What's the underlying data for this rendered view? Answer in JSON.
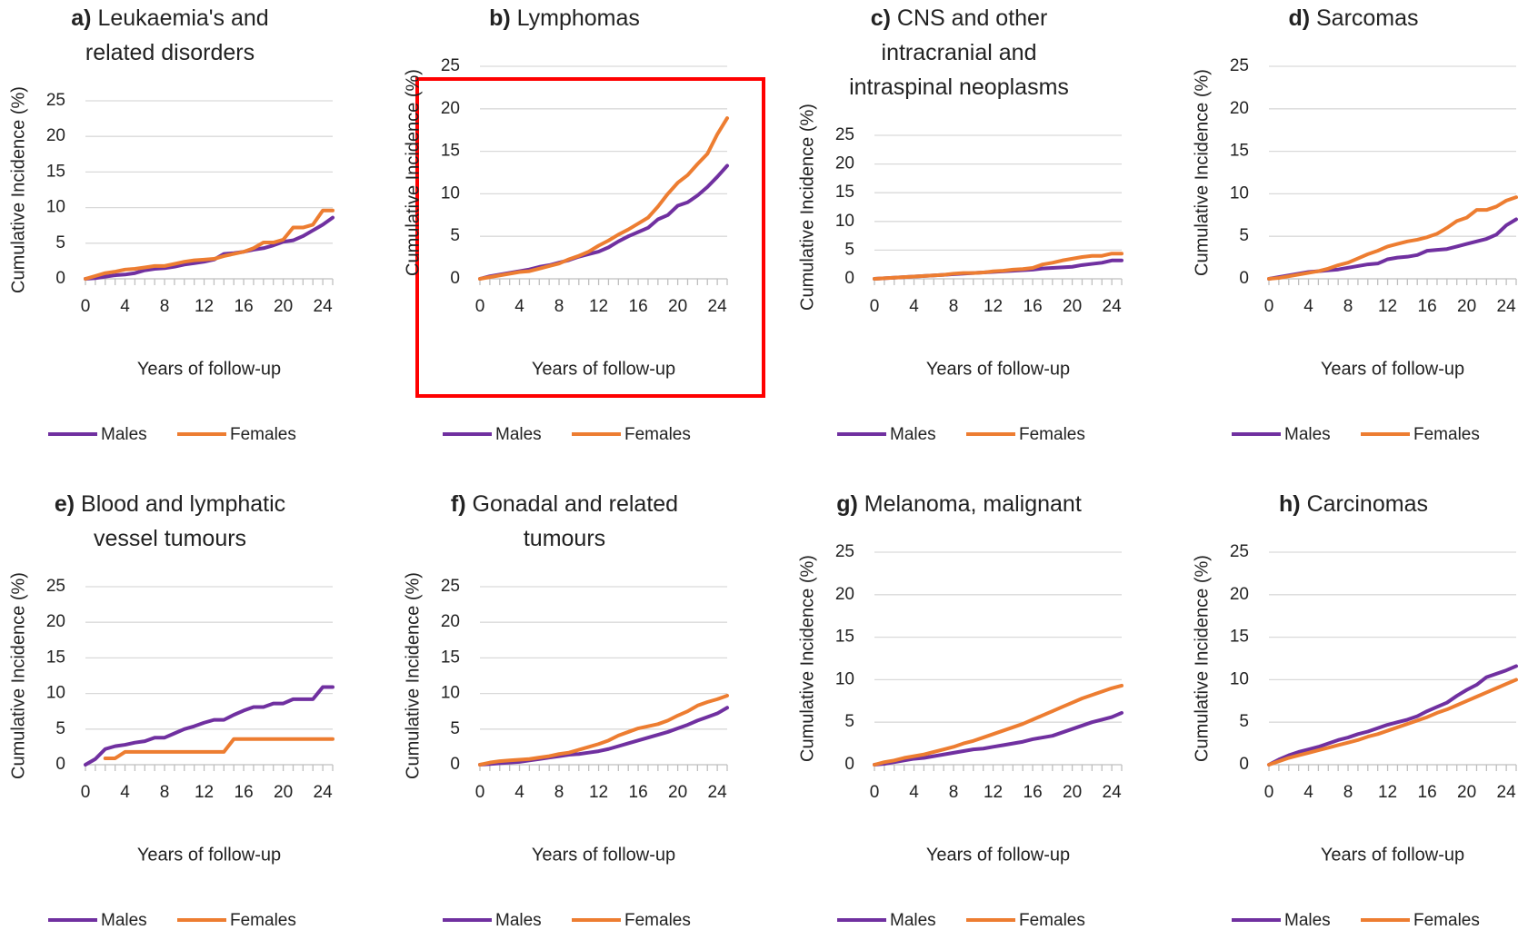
{
  "chart_data": [
    {
      "type": "line",
      "label": "a)",
      "title": [
        "Leukaemia's and",
        "related disorders"
      ],
      "xlabel": "Years of follow-up",
      "ylabel": "Cumulative Incidence (%)",
      "x": [
        0,
        1,
        2,
        3,
        4,
        5,
        6,
        7,
        8,
        9,
        10,
        11,
        12,
        13,
        14,
        15,
        16,
        17,
        18,
        19,
        20,
        21,
        22,
        23,
        24,
        25
      ],
      "xlim": [
        0,
        25
      ],
      "xticks": [
        0,
        4,
        8,
        12,
        16,
        20,
        24
      ],
      "ylim": [
        0,
        25
      ],
      "yticks": [
        0,
        5,
        10,
        15,
        20,
        25
      ],
      "grid": true,
      "series": [
        {
          "name": "Males",
          "color": "#7030a0",
          "values": [
            0,
            0.1,
            0.3,
            0.5,
            0.6,
            0.8,
            1.2,
            1.4,
            1.5,
            1.7,
            2,
            2.2,
            2.4,
            2.7,
            3.5,
            3.6,
            3.8,
            4.1,
            4.3,
            4.7,
            5.2,
            5.4,
            6,
            6.8,
            7.6,
            8.6
          ]
        },
        {
          "name": "Females",
          "color": "#ed7d31",
          "values": [
            0,
            0.4,
            0.8,
            1,
            1.3,
            1.4,
            1.6,
            1.8,
            1.8,
            2.1,
            2.4,
            2.6,
            2.7,
            2.8,
            3.2,
            3.5,
            3.8,
            4.3,
            5.1,
            5.1,
            5.5,
            7.2,
            7.2,
            7.6,
            9.6,
            9.6
          ]
        }
      ]
    },
    {
      "type": "line",
      "label": "b)",
      "title": [
        "Lymphomas"
      ],
      "highlight": true,
      "xlabel": "Years of follow-up",
      "ylabel": "Cumulative Incidence (%)",
      "x": [
        0,
        1,
        2,
        3,
        4,
        5,
        6,
        7,
        8,
        9,
        10,
        11,
        12,
        13,
        14,
        15,
        16,
        17,
        18,
        19,
        20,
        21,
        22,
        23,
        24,
        25
      ],
      "xlim": [
        0,
        25
      ],
      "xticks": [
        0,
        4,
        8,
        12,
        16,
        20,
        24
      ],
      "ylim": [
        0,
        25
      ],
      "yticks": [
        0,
        5,
        10,
        15,
        20,
        25
      ],
      "grid": true,
      "series": [
        {
          "name": "Males",
          "color": "#7030a0",
          "values": [
            0,
            0.3,
            0.5,
            0.7,
            0.9,
            1.1,
            1.4,
            1.6,
            1.9,
            2.2,
            2.6,
            2.9,
            3.2,
            3.7,
            4.4,
            5,
            5.5,
            6,
            7,
            7.5,
            8.6,
            9,
            9.8,
            10.8,
            12,
            13.3
          ]
        },
        {
          "name": "Females",
          "color": "#ed7d31",
          "values": [
            0,
            0.2,
            0.4,
            0.6,
            0.8,
            0.9,
            1.2,
            1.5,
            1.8,
            2.3,
            2.7,
            3.2,
            3.9,
            4.5,
            5.2,
            5.8,
            6.5,
            7.2,
            8.5,
            10,
            11.3,
            12.2,
            13.5,
            14.7,
            17,
            18.9
          ]
        }
      ]
    },
    {
      "type": "line",
      "label": "c)",
      "title": [
        "CNS and other",
        "intracranial and",
        "intraspinal neoplasms"
      ],
      "xlabel": "Years of follow-up",
      "ylabel": "Cumulative Incidence (%)",
      "x": [
        0,
        1,
        2,
        3,
        4,
        5,
        6,
        7,
        8,
        9,
        10,
        11,
        12,
        13,
        14,
        15,
        16,
        17,
        18,
        19,
        20,
        21,
        22,
        23,
        24,
        25
      ],
      "xlim": [
        0,
        25
      ],
      "xticks": [
        0,
        4,
        8,
        12,
        16,
        20,
        24
      ],
      "ylim": [
        0,
        25
      ],
      "yticks": [
        0,
        5,
        10,
        15,
        20,
        25
      ],
      "grid": true,
      "series": [
        {
          "name": "Males",
          "color": "#7030a0",
          "values": [
            0,
            0.1,
            0.2,
            0.3,
            0.4,
            0.5,
            0.6,
            0.7,
            0.8,
            0.9,
            1,
            1.1,
            1.2,
            1.3,
            1.4,
            1.5,
            1.6,
            1.8,
            1.9,
            2,
            2.1,
            2.4,
            2.6,
            2.8,
            3.2,
            3.2
          ]
        },
        {
          "name": "Females",
          "color": "#ed7d31",
          "values": [
            0,
            0.1,
            0.2,
            0.3,
            0.4,
            0.5,
            0.6,
            0.7,
            0.9,
            1,
            1,
            1.1,
            1.3,
            1.4,
            1.6,
            1.7,
            1.9,
            2.5,
            2.8,
            3.2,
            3.5,
            3.8,
            4,
            4,
            4.4,
            4.4
          ]
        }
      ]
    },
    {
      "type": "line",
      "label": "d)",
      "title": [
        "Sarcomas"
      ],
      "xlabel": "Years of follow-up",
      "ylabel": "Cumulative Incidence (%)",
      "x": [
        0,
        1,
        2,
        3,
        4,
        5,
        6,
        7,
        8,
        9,
        10,
        11,
        12,
        13,
        14,
        15,
        16,
        17,
        18,
        19,
        20,
        21,
        22,
        23,
        24,
        25
      ],
      "xlim": [
        0,
        25
      ],
      "xticks": [
        0,
        4,
        8,
        12,
        16,
        20,
        24
      ],
      "ylim": [
        0,
        25
      ],
      "yticks": [
        0,
        5,
        10,
        15,
        20,
        25
      ],
      "grid": true,
      "series": [
        {
          "name": "Males",
          "color": "#7030a0",
          "values": [
            0,
            0.2,
            0.4,
            0.6,
            0.8,
            0.9,
            1,
            1.1,
            1.3,
            1.5,
            1.7,
            1.8,
            2.3,
            2.5,
            2.6,
            2.8,
            3.3,
            3.4,
            3.5,
            3.8,
            4.1,
            4.4,
            4.7,
            5.2,
            6.3,
            7
          ]
        },
        {
          "name": "Females",
          "color": "#ed7d31",
          "values": [
            0,
            0.1,
            0.3,
            0.5,
            0.7,
            0.9,
            1.2,
            1.6,
            1.9,
            2.4,
            2.9,
            3.3,
            3.8,
            4.1,
            4.4,
            4.6,
            4.9,
            5.3,
            6,
            6.8,
            7.2,
            8.1,
            8.1,
            8.5,
            9.2,
            9.6
          ]
        }
      ]
    },
    {
      "type": "line",
      "label": "e)",
      "title": [
        "Blood and lymphatic",
        "vessel tumours"
      ],
      "xlabel": "Years of follow-up",
      "ylabel": "Cumulative Incidence (%)",
      "x": [
        0,
        1,
        2,
        3,
        4,
        5,
        6,
        7,
        8,
        9,
        10,
        11,
        12,
        13,
        14,
        15,
        16,
        17,
        18,
        19,
        20,
        21,
        22,
        23,
        24,
        25
      ],
      "xlim": [
        0,
        25
      ],
      "xticks": [
        0,
        4,
        8,
        12,
        16,
        20,
        24
      ],
      "ylim": [
        0,
        25
      ],
      "yticks": [
        0,
        5,
        10,
        15,
        20,
        25
      ],
      "grid": true,
      "series": [
        {
          "name": "Males",
          "color": "#7030a0",
          "values": [
            0,
            0.8,
            2.2,
            2.6,
            2.8,
            3.1,
            3.3,
            3.8,
            3.8,
            4.4,
            5,
            5.4,
            5.9,
            6.3,
            6.3,
            7,
            7.6,
            8.1,
            8.1,
            8.6,
            8.6,
            9.2,
            9.2,
            9.2,
            10.9,
            10.9
          ]
        },
        {
          "name": "Females",
          "color": "#ed7d31",
          "values": [
            null,
            null,
            0.9,
            0.9,
            1.8,
            1.8,
            1.8,
            1.8,
            1.8,
            1.8,
            1.8,
            1.8,
            1.8,
            1.8,
            1.8,
            3.6,
            3.6,
            3.6,
            3.6,
            3.6,
            3.6,
            3.6,
            3.6,
            3.6,
            3.6,
            3.6
          ]
        }
      ]
    },
    {
      "type": "line",
      "label": "f)",
      "title": [
        "Gonadal and related",
        "tumours"
      ],
      "xlabel": "Years of follow-up",
      "ylabel": "Cumulative Incidence (%)",
      "x": [
        0,
        1,
        2,
        3,
        4,
        5,
        6,
        7,
        8,
        9,
        10,
        11,
        12,
        13,
        14,
        15,
        16,
        17,
        18,
        19,
        20,
        21,
        22,
        23,
        24,
        25
      ],
      "xlim": [
        0,
        25
      ],
      "xticks": [
        0,
        4,
        8,
        12,
        16,
        20,
        24
      ],
      "ylim": [
        0,
        25
      ],
      "yticks": [
        0,
        5,
        10,
        15,
        20,
        25
      ],
      "grid": true,
      "series": [
        {
          "name": "Males",
          "color": "#7030a0",
          "values": [
            0,
            0.1,
            0.2,
            0.3,
            0.4,
            0.6,
            0.8,
            1,
            1.2,
            1.4,
            1.5,
            1.7,
            1.9,
            2.2,
            2.6,
            3,
            3.4,
            3.8,
            4.2,
            4.6,
            5.1,
            5.6,
            6.2,
            6.7,
            7.2,
            8
          ]
        },
        {
          "name": "Females",
          "color": "#ed7d31",
          "values": [
            0,
            0.3,
            0.5,
            0.6,
            0.7,
            0.8,
            1,
            1.2,
            1.5,
            1.7,
            2.1,
            2.5,
            2.9,
            3.4,
            4.1,
            4.6,
            5.1,
            5.4,
            5.7,
            6.2,
            6.9,
            7.5,
            8.3,
            8.8,
            9.2,
            9.7
          ]
        }
      ]
    },
    {
      "type": "line",
      "label": "g)",
      "title": [
        "Melanoma, malignant"
      ],
      "xlabel": "Years of follow-up",
      "ylabel": "Cumulative Incidence (%)",
      "x": [
        0,
        1,
        2,
        3,
        4,
        5,
        6,
        7,
        8,
        9,
        10,
        11,
        12,
        13,
        14,
        15,
        16,
        17,
        18,
        19,
        20,
        21,
        22,
        23,
        24,
        25
      ],
      "xlim": [
        0,
        25
      ],
      "xticks": [
        0,
        4,
        8,
        12,
        16,
        20,
        24
      ],
      "ylim": [
        0,
        25
      ],
      "yticks": [
        0,
        5,
        10,
        15,
        20,
        25
      ],
      "grid": true,
      "series": [
        {
          "name": "Males",
          "color": "#7030a0",
          "values": [
            0,
            0.1,
            0.3,
            0.5,
            0.7,
            0.8,
            1,
            1.2,
            1.4,
            1.6,
            1.8,
            1.9,
            2.1,
            2.3,
            2.5,
            2.7,
            3,
            3.2,
            3.4,
            3.8,
            4.2,
            4.6,
            5,
            5.3,
            5.6,
            6.1
          ]
        },
        {
          "name": "Females",
          "color": "#ed7d31",
          "values": [
            0,
            0.3,
            0.5,
            0.8,
            1,
            1.2,
            1.5,
            1.8,
            2.1,
            2.5,
            2.8,
            3.2,
            3.6,
            4,
            4.4,
            4.8,
            5.3,
            5.8,
            6.3,
            6.8,
            7.3,
            7.8,
            8.2,
            8.6,
            9,
            9.3
          ]
        }
      ]
    },
    {
      "type": "line",
      "label": "h)",
      "title": [
        "Carcinomas"
      ],
      "xlabel": "Years of follow-up",
      "ylabel": "Cumulative Incidence (%)",
      "x": [
        0,
        1,
        2,
        3,
        4,
        5,
        6,
        7,
        8,
        9,
        10,
        11,
        12,
        13,
        14,
        15,
        16,
        17,
        18,
        19,
        20,
        21,
        22,
        23,
        24,
        25
      ],
      "xlim": [
        0,
        25
      ],
      "xticks": [
        0,
        4,
        8,
        12,
        16,
        20,
        24
      ],
      "ylim": [
        0,
        25
      ],
      "yticks": [
        0,
        5,
        10,
        15,
        20,
        25
      ],
      "grid": true,
      "series": [
        {
          "name": "Males",
          "color": "#7030a0",
          "values": [
            0,
            0.6,
            1.1,
            1.5,
            1.8,
            2.1,
            2.5,
            2.9,
            3.2,
            3.6,
            3.9,
            4.3,
            4.7,
            5,
            5.3,
            5.7,
            6.3,
            6.8,
            7.3,
            8.1,
            8.8,
            9.4,
            10.3,
            10.7,
            11.1,
            11.6
          ]
        },
        {
          "name": "Females",
          "color": "#ed7d31",
          "values": [
            0,
            0.4,
            0.8,
            1.1,
            1.4,
            1.7,
            2,
            2.3,
            2.6,
            2.9,
            3.3,
            3.6,
            4,
            4.4,
            4.8,
            5.2,
            5.6,
            6.1,
            6.5,
            7,
            7.5,
            8,
            8.5,
            9,
            9.5,
            10
          ]
        }
      ]
    }
  ]
}
